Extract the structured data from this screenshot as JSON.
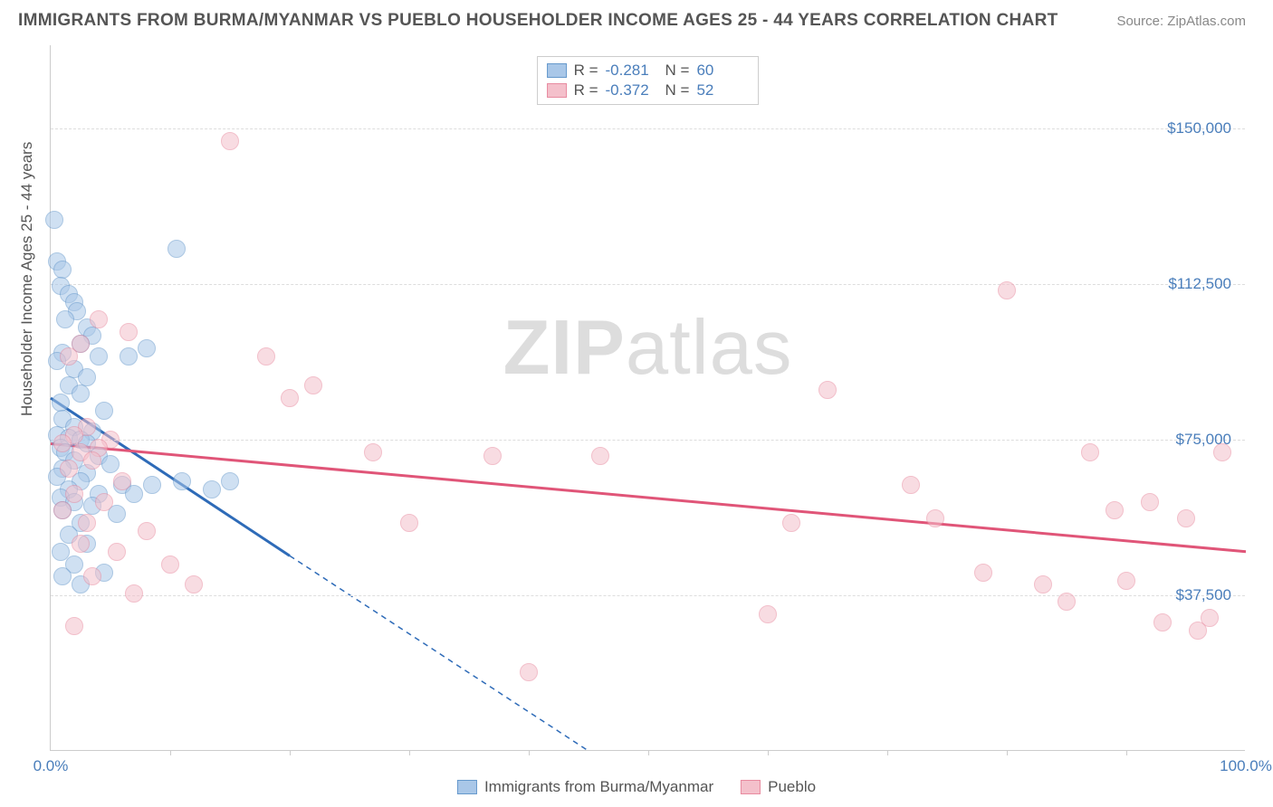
{
  "header": {
    "title": "IMMIGRANTS FROM BURMA/MYANMAR VS PUEBLO HOUSEHOLDER INCOME AGES 25 - 44 YEARS CORRELATION CHART",
    "source": "Source: ZipAtlas.com"
  },
  "watermark": {
    "part1": "ZIP",
    "part2": "atlas"
  },
  "chart": {
    "type": "scatter",
    "ylabel": "Householder Income Ages 25 - 44 years",
    "xlim": [
      0,
      100
    ],
    "ylim": [
      0,
      170000
    ],
    "yticks": [
      {
        "v": 37500,
        "label": "$37,500"
      },
      {
        "v": 75000,
        "label": "$75,000"
      },
      {
        "v": 112500,
        "label": "$112,500"
      },
      {
        "v": 150000,
        "label": "$150,000"
      }
    ],
    "xticks_minor": [
      10,
      20,
      30,
      40,
      50,
      60,
      70,
      80,
      90
    ],
    "xticks": [
      {
        "v": 0,
        "label": "0.0%"
      },
      {
        "v": 100,
        "label": "100.0%"
      }
    ],
    "grid_color": "#dddddd",
    "background_color": "#ffffff",
    "point_radius": 10,
    "series": [
      {
        "name": "Immigrants from Burma/Myanmar",
        "fill": "#a9c7e8",
        "stroke": "#6699cc",
        "line_color": "#2e6bb8",
        "fill_opacity": 0.55,
        "R": "-0.281",
        "N": "60",
        "trend": {
          "x1": 0,
          "y1": 85000,
          "x2": 20,
          "y2": 47000,
          "extrap_x2": 45,
          "extrap_y2": 0
        },
        "points": [
          [
            0.3,
            128000
          ],
          [
            0.5,
            118000
          ],
          [
            1.0,
            116000
          ],
          [
            0.8,
            112000
          ],
          [
            1.5,
            110000
          ],
          [
            2.0,
            108000
          ],
          [
            2.2,
            106000
          ],
          [
            1.2,
            104000
          ],
          [
            3.0,
            102000
          ],
          [
            3.5,
            100000
          ],
          [
            2.5,
            98000
          ],
          [
            1.0,
            96000
          ],
          [
            4.0,
            95000
          ],
          [
            0.5,
            94000
          ],
          [
            2.0,
            92000
          ],
          [
            3.0,
            90000
          ],
          [
            1.5,
            88000
          ],
          [
            2.5,
            86000
          ],
          [
            0.8,
            84000
          ],
          [
            4.5,
            82000
          ],
          [
            1.0,
            80000
          ],
          [
            2.0,
            78000
          ],
          [
            3.5,
            77000
          ],
          [
            0.5,
            76000
          ],
          [
            1.5,
            75500
          ],
          [
            2.5,
            75000
          ],
          [
            3.0,
            74000
          ],
          [
            0.8,
            73000
          ],
          [
            1.2,
            72000
          ],
          [
            4.0,
            71000
          ],
          [
            2.0,
            70000
          ],
          [
            5.0,
            69000
          ],
          [
            1.0,
            68000
          ],
          [
            3.0,
            67000
          ],
          [
            0.5,
            66000
          ],
          [
            2.5,
            65000
          ],
          [
            6.0,
            64000
          ],
          [
            1.5,
            63000
          ],
          [
            4.0,
            62000
          ],
          [
            8.5,
            64000
          ],
          [
            0.8,
            61000
          ],
          [
            2.0,
            60000
          ],
          [
            3.5,
            59000
          ],
          [
            1.0,
            58000
          ],
          [
            5.5,
            57000
          ],
          [
            2.5,
            55000
          ],
          [
            11.0,
            65000
          ],
          [
            13.5,
            63000
          ],
          [
            15.0,
            65000
          ],
          [
            7.0,
            62000
          ],
          [
            1.5,
            52000
          ],
          [
            3.0,
            50000
          ],
          [
            0.8,
            48000
          ],
          [
            10.5,
            121000
          ],
          [
            2.0,
            45000
          ],
          [
            4.5,
            43000
          ],
          [
            1.0,
            42000
          ],
          [
            8.0,
            97000
          ],
          [
            2.5,
            40000
          ],
          [
            6.5,
            95000
          ]
        ]
      },
      {
        "name": "Pueblo",
        "fill": "#f4c0cb",
        "stroke": "#e88ba0",
        "line_color": "#e05578",
        "fill_opacity": 0.55,
        "R": "-0.372",
        "N": "52",
        "trend": {
          "x1": 0,
          "y1": 74000,
          "x2": 100,
          "y2": 48000
        },
        "points": [
          [
            15.0,
            147000
          ],
          [
            4.0,
            104000
          ],
          [
            6.5,
            101000
          ],
          [
            2.5,
            98000
          ],
          [
            1.5,
            95000
          ],
          [
            3.0,
            78000
          ],
          [
            2.0,
            76000
          ],
          [
            5.0,
            75000
          ],
          [
            1.0,
            74000
          ],
          [
            4.0,
            73000
          ],
          [
            2.5,
            72000
          ],
          [
            3.5,
            70000
          ],
          [
            1.5,
            68000
          ],
          [
            6.0,
            65000
          ],
          [
            2.0,
            62000
          ],
          [
            4.5,
            60000
          ],
          [
            1.0,
            58000
          ],
          [
            3.0,
            55000
          ],
          [
            8.0,
            53000
          ],
          [
            2.5,
            50000
          ],
          [
            5.5,
            48000
          ],
          [
            10.0,
            45000
          ],
          [
            3.5,
            42000
          ],
          [
            12.0,
            40000
          ],
          [
            7.0,
            38000
          ],
          [
            2.0,
            30000
          ],
          [
            18.0,
            95000
          ],
          [
            20.0,
            85000
          ],
          [
            22.0,
            88000
          ],
          [
            27.0,
            72000
          ],
          [
            30.0,
            55000
          ],
          [
            37.0,
            71000
          ],
          [
            40.0,
            19000
          ],
          [
            46.0,
            71000
          ],
          [
            60.0,
            33000
          ],
          [
            62.0,
            55000
          ],
          [
            65.0,
            87000
          ],
          [
            72.0,
            64000
          ],
          [
            74.0,
            56000
          ],
          [
            78.0,
            43000
          ],
          [
            80.0,
            111000
          ],
          [
            83.0,
            40000
          ],
          [
            85.0,
            36000
          ],
          [
            87.0,
            72000
          ],
          [
            89.0,
            58000
          ],
          [
            90.0,
            41000
          ],
          [
            92.0,
            60000
          ],
          [
            93.0,
            31000
          ],
          [
            95.0,
            56000
          ],
          [
            96.0,
            29000
          ],
          [
            97.0,
            32000
          ],
          [
            98.0,
            72000
          ]
        ]
      }
    ],
    "bottom_legend": [
      {
        "label": "Immigrants from Burma/Myanmar",
        "fill": "#a9c7e8",
        "stroke": "#6699cc"
      },
      {
        "label": "Pueblo",
        "fill": "#f4c0cb",
        "stroke": "#e88ba0"
      }
    ]
  }
}
